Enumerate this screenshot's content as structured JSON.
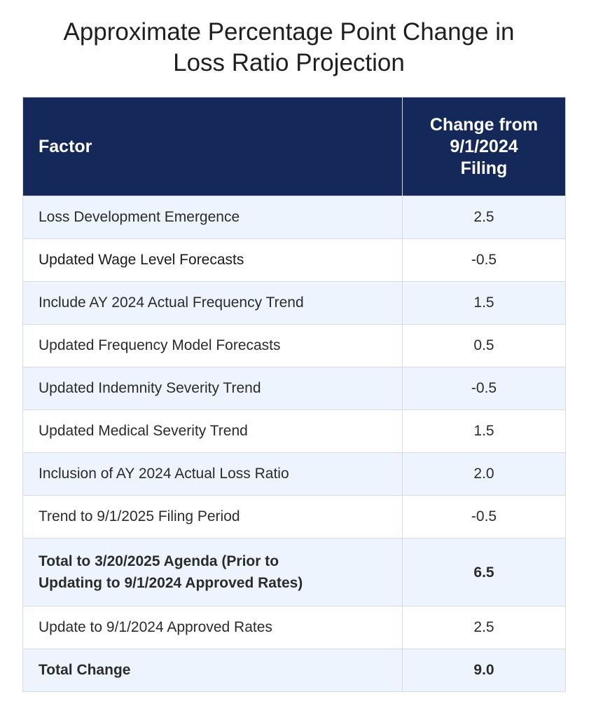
{
  "title": "Approximate Percentage Point Change in Loss Ratio Projection",
  "title_lines": [
    "Approximate Percentage Point Change in",
    "Loss Ratio Projection"
  ],
  "table": {
    "headers": {
      "factor": "Factor",
      "change_lines": [
        "Change from",
        "9/1/2024",
        "Filing"
      ]
    },
    "rows": [
      {
        "factor": "Loss Development Emergence",
        "value": "2.5"
      },
      {
        "factor": "Updated Wage Level Forecasts",
        "value": "-0.5"
      },
      {
        "factor": "Include AY 2024 Actual Frequency Trend",
        "value": "1.5"
      },
      {
        "factor": "Updated Frequency Model Forecasts",
        "value": "0.5"
      },
      {
        "factor": "Updated Indemnity Severity Trend",
        "value": "-0.5"
      },
      {
        "factor": "Updated Medical Severity Trend",
        "value": "1.5"
      },
      {
        "factor": "Inclusion of AY 2024 Actual Loss Ratio",
        "value": "2.0"
      },
      {
        "factor": "Trend to 9/1/2025 Filing Period",
        "value": "-0.5"
      },
      {
        "factor_lines": [
          "Total to 3/20/2025 Agenda (Prior to",
          "Updating to 9/1/2024 Approved Rates)"
        ],
        "value": "6.5"
      },
      {
        "factor": "Update to 9/1/2024 Approved Rates",
        "value": "2.5"
      },
      {
        "factor": "Total Change",
        "value": "9.0"
      }
    ]
  },
  "colors": {
    "header_bg": "#14295a",
    "header_text": "#ffffff",
    "row_alt_bg": "#eef4fd",
    "positive_value": "#b5322a",
    "negative_value": "#1f7a33",
    "border": "#d6dbe4"
  }
}
